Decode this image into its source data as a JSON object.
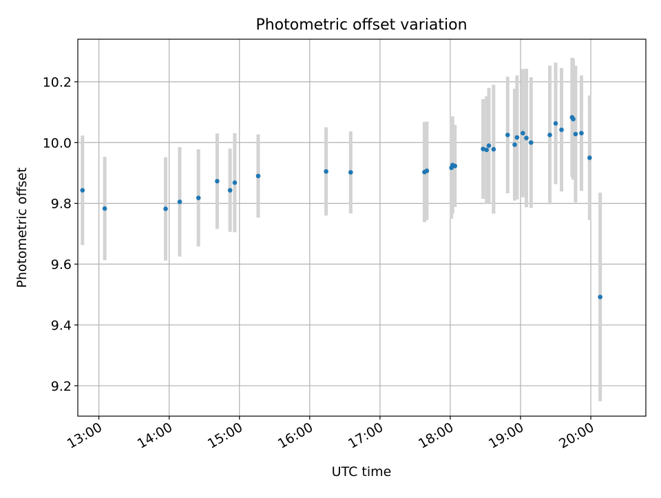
{
  "chart_data": {
    "type": "scatter",
    "title": "Photometric offset variation",
    "xlabel": "UTC time",
    "ylabel": "Photometric offset",
    "x_type": "time",
    "xlim": [
      "12:42",
      "20:47"
    ],
    "ylim": [
      9.1,
      10.34
    ],
    "x_ticks": [
      "13:00",
      "14:00",
      "15:00",
      "16:00",
      "17:00",
      "18:00",
      "19:00",
      "20:00"
    ],
    "y_ticks": [
      9.2,
      9.4,
      9.6,
      9.8,
      10.0,
      10.2
    ],
    "grid": true,
    "colors": {
      "points": "#1f77b4",
      "errorbars": "#d3d3d3",
      "grid": "#b0b0b0"
    },
    "points": [
      {
        "t": "12:46",
        "y": 9.843,
        "err": 0.18
      },
      {
        "t": "13:05",
        "y": 9.783,
        "err": 0.17
      },
      {
        "t": "13:57",
        "y": 9.782,
        "err": 0.17
      },
      {
        "t": "14:09",
        "y": 9.805,
        "err": 0.18
      },
      {
        "t": "14:25",
        "y": 9.818,
        "err": 0.16
      },
      {
        "t": "14:41",
        "y": 9.873,
        "err": 0.157
      },
      {
        "t": "14:52",
        "y": 9.843,
        "err": 0.137
      },
      {
        "t": "14:56",
        "y": 9.868,
        "err": 0.163
      },
      {
        "t": "15:16",
        "y": 9.89,
        "err": 0.137
      },
      {
        "t": "16:14",
        "y": 9.905,
        "err": 0.145
      },
      {
        "t": "16:35",
        "y": 9.902,
        "err": 0.135
      },
      {
        "t": "17:38",
        "y": 9.903,
        "err": 0.165
      },
      {
        "t": "17:40",
        "y": 9.907,
        "err": 0.162
      },
      {
        "t": "18:01",
        "y": 9.917,
        "err": 0.167
      },
      {
        "t": "18:02",
        "y": 9.926,
        "err": 0.16
      },
      {
        "t": "18:04",
        "y": 9.923,
        "err": 0.135
      },
      {
        "t": "18:28",
        "y": 9.979,
        "err": 0.164
      },
      {
        "t": "18:31",
        "y": 9.976,
        "err": 0.176
      },
      {
        "t": "18:33",
        "y": 9.99,
        "err": 0.19
      },
      {
        "t": "18:37",
        "y": 9.978,
        "err": 0.212
      },
      {
        "t": "18:49",
        "y": 10.025,
        "err": 0.192
      },
      {
        "t": "18:55",
        "y": 9.993,
        "err": 0.184
      },
      {
        "t": "18:57",
        "y": 10.017,
        "err": 0.204
      },
      {
        "t": "19:02",
        "y": 10.031,
        "err": 0.211
      },
      {
        "t": "19:05",
        "y": 10.015,
        "err": 0.228
      },
      {
        "t": "19:09",
        "y": 10.0,
        "err": 0.215
      },
      {
        "t": "19:25",
        "y": 10.025,
        "err": 0.228
      },
      {
        "t": "19:30",
        "y": 10.063,
        "err": 0.2
      },
      {
        "t": "19:35",
        "y": 10.042,
        "err": 0.203
      },
      {
        "t": "19:44",
        "y": 10.083,
        "err": 0.196
      },
      {
        "t": "19:45",
        "y": 10.077,
        "err": 0.199
      },
      {
        "t": "19:47",
        "y": 10.028,
        "err": 0.225
      },
      {
        "t": "19:52",
        "y": 10.031,
        "err": 0.19
      },
      {
        "t": "19:59",
        "y": 9.95,
        "err": 0.205
      },
      {
        "t": "20:08",
        "y": 9.492,
        "err": 0.343
      }
    ]
  }
}
